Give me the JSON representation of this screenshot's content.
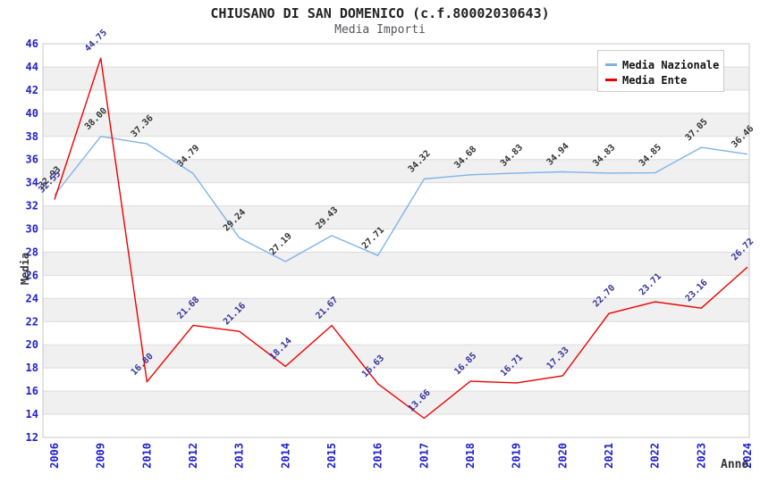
{
  "title": "CHIUSANO DI SAN DOMENICO (c.f.80002030643)",
  "subtitle": "Media Importi",
  "colors": {
    "nazionale_line": "#7fb3e8",
    "ente_line": "#ee0000",
    "nazionale_point_label": "#333333",
    "ente_point_label": "#333399",
    "axis_tick_text": "#2121cc",
    "grid_line": "#dcdcdc",
    "plot_border": "#c9c9c9",
    "band_white": "#ffffff",
    "band_gray": "#f0f0f0"
  },
  "chart_data": {
    "type": "line",
    "title": "CHIUSANO DI SAN DOMENICO (c.f.80002030643)",
    "subtitle": "Media Importi",
    "xlabel": "Anno",
    "ylabel": "Media",
    "ylim": [
      12,
      46
    ],
    "ytick_step": 2,
    "grid": "horizontal-bands-alternating",
    "legend_position": "top-right",
    "categories": [
      "2006",
      "2009",
      "2010",
      "2012",
      "2013",
      "2014",
      "2015",
      "2016",
      "2017",
      "2018",
      "2019",
      "2020",
      "2021",
      "2022",
      "2023",
      "2024"
    ],
    "series": [
      {
        "name": "Media Nazionale",
        "color": "#7fb3e8",
        "label_color": "#333333",
        "values": [
          32.93,
          38.0,
          37.36,
          34.79,
          29.24,
          27.19,
          29.43,
          27.71,
          34.32,
          34.68,
          34.83,
          34.94,
          34.83,
          34.85,
          37.05,
          36.46
        ]
      },
      {
        "name": "Media Ente",
        "color": "#ee0000",
        "label_color": "#333399",
        "values": [
          32.55,
          44.75,
          16.8,
          21.68,
          21.16,
          18.14,
          21.67,
          16.63,
          13.66,
          16.85,
          16.71,
          17.33,
          22.7,
          23.71,
          23.16,
          26.72
        ]
      }
    ]
  }
}
